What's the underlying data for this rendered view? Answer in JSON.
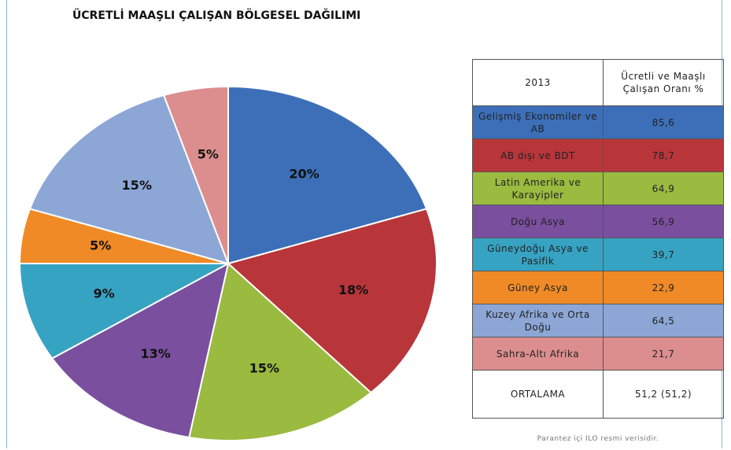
{
  "chart_data": {
    "type": "pie",
    "title": "ÜCRETLİ MAAŞLI ÇALIŞAN BÖLGESEL DAĞILIMI",
    "values": [
      20,
      18,
      15,
      13,
      9,
      5,
      15,
      5
    ],
    "value_labels": [
      "20%",
      "18%",
      "15%",
      "13%",
      "9%",
      "5%",
      "15%",
      "5%"
    ],
    "colors": [
      "#3c6fb8",
      "#b8363a",
      "#9aba40",
      "#7a4f9e",
      "#37a3c2",
      "#f08a26",
      "#8ca6d6",
      "#dc8e8e"
    ]
  },
  "table": {
    "header": [
      "2013",
      "Ücretli ve Maaşlı Çalışan Oranı %"
    ],
    "rows": [
      [
        "Gelişmiş Ekonomiler ve AB",
        "85,6"
      ],
      [
        "AB dışı ve BDT",
        "78,7"
      ],
      [
        "Latin Amerika ve Karayipler",
        "64,9"
      ],
      [
        "Doğu Asya",
        "56,9"
      ],
      [
        "Güneydoğu Asya ve Pasifik",
        "39,7"
      ],
      [
        "Güney Asya",
        "22,9"
      ],
      [
        "Kuzey Afrika ve Orta Doğu",
        "64,5"
      ],
      [
        "Sahra-Altı Afrika",
        "21,7"
      ]
    ],
    "footer": [
      "ORTALAMA",
      "51,2 (51,2)"
    ],
    "note": "Parantez içi ILO resmi verisidir."
  }
}
